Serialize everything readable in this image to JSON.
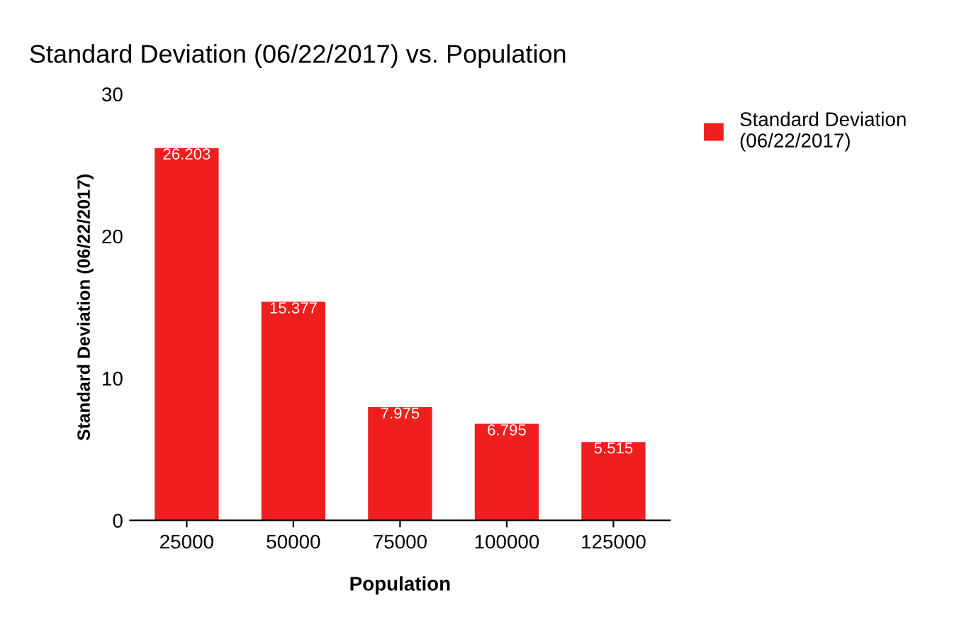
{
  "chart_data": {
    "type": "bar",
    "title": "Standard Deviation (06/22/2017) vs. Population",
    "xlabel": "Population",
    "ylabel": "Standard Deviation (06/22/2017)",
    "categories": [
      "25000",
      "50000",
      "75000",
      "100000",
      "125000"
    ],
    "series": [
      {
        "name": "Standard Deviation\n(06/22/2017)",
        "color": "#f01e1e",
        "values": [
          26.203,
          15.377,
          7.975,
          6.795,
          5.515
        ]
      }
    ],
    "ylim": [
      0,
      30
    ],
    "yticks": [
      0,
      10,
      20,
      30
    ],
    "grid": false,
    "legend": "top right",
    "data_labels": true
  }
}
